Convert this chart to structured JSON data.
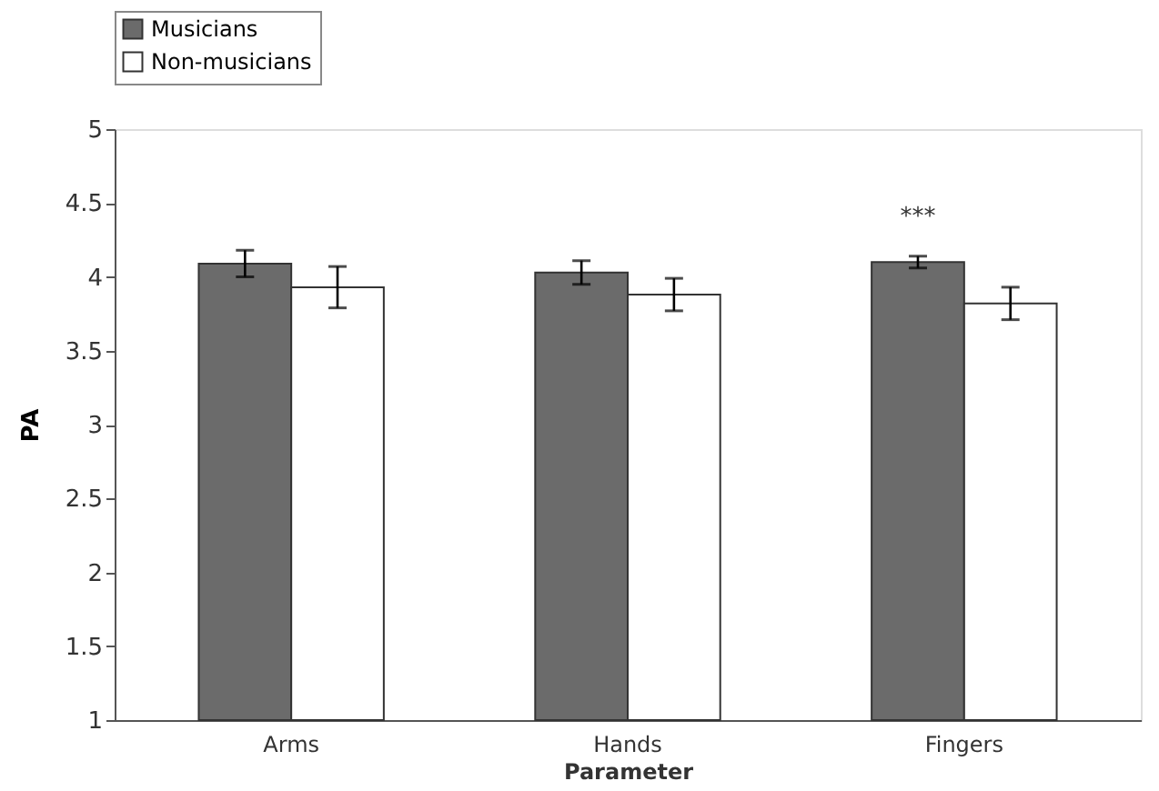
{
  "chart_data": {
    "type": "bar",
    "xlabel": "Parameter",
    "ylabel": "PA",
    "categories": [
      "Arms",
      "Hands",
      "Fingers"
    ],
    "series": [
      {
        "name": "Musicians",
        "color": "#6b6b6b",
        "values": [
          4.09,
          4.03,
          4.1
        ],
        "errors": [
          0.09,
          0.08,
          0.04
        ]
      },
      {
        "name": "Non-musicians",
        "color": "#ffffff",
        "values": [
          3.93,
          3.88,
          3.82
        ],
        "errors": [
          0.14,
          0.11,
          0.11
        ]
      }
    ],
    "ylim": [
      1,
      5
    ],
    "yticks": [
      1,
      1.5,
      2,
      2.5,
      3,
      3.5,
      4,
      4.5,
      5
    ],
    "grid": false,
    "legend": "top left",
    "annotations": [
      "***"
    ]
  }
}
